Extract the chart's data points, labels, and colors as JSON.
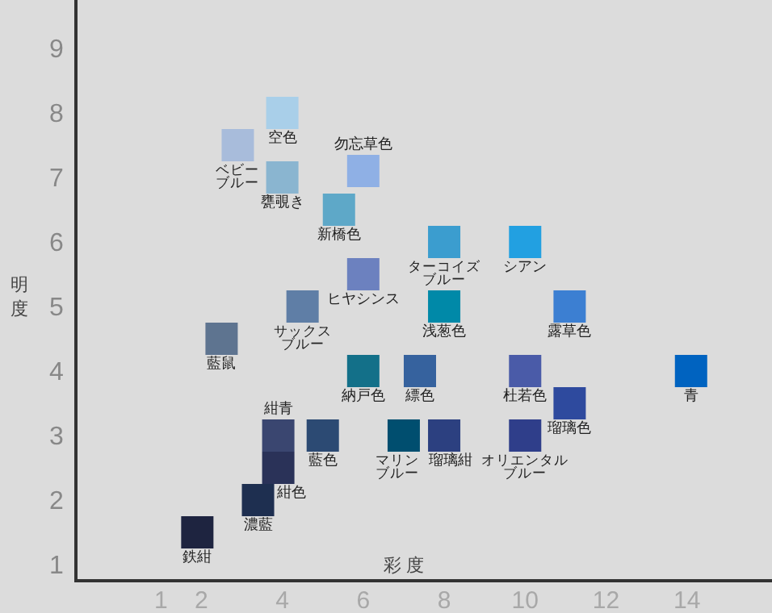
{
  "chart_data": {
    "type": "scatter",
    "xlabel": "彩 度",
    "ylabel": "明度",
    "xlim": [
      -1.1,
      16.1
    ],
    "ylim": [
      0.75,
      9.75
    ],
    "xticks": [
      1,
      2,
      4,
      6,
      8,
      10,
      12,
      14
    ],
    "yticks": [
      1,
      2,
      3,
      4,
      5,
      6,
      7,
      8,
      9
    ],
    "marker": "square",
    "series": [
      {
        "name": "空色",
        "color": "#a9cfe9",
        "x": [
          4
        ],
        "values": [
          8
        ]
      },
      {
        "name": "ベビーブルー",
        "color": "#a8bcdb",
        "x": [
          2.9
        ],
        "values": [
          7.5
        ]
      },
      {
        "name": "甕覗き",
        "color": "#8ab5d0",
        "x": [
          4
        ],
        "values": [
          7
        ]
      },
      {
        "name": "勿忘草色",
        "color": "#8fb0e5",
        "x": [
          6
        ],
        "values": [
          7.1
        ]
      },
      {
        "name": "新橋色",
        "color": "#5ea8c8",
        "x": [
          5.4
        ],
        "values": [
          6.5
        ]
      },
      {
        "name": "ヒヤシンス",
        "color": "#6c81bf",
        "x": [
          6
        ],
        "values": [
          5.5
        ]
      },
      {
        "name": "サックスブルー",
        "color": "#5f7ea6",
        "x": [
          4.5
        ],
        "values": [
          5
        ]
      },
      {
        "name": "藍鼠",
        "color": "#5e7490",
        "x": [
          2.5
        ],
        "values": [
          4.5
        ]
      },
      {
        "name": "納戸色",
        "color": "#137089",
        "x": [
          6
        ],
        "values": [
          4
        ]
      },
      {
        "name": "縹色",
        "color": "#36629e",
        "x": [
          7.4
        ],
        "values": [
          4
        ]
      },
      {
        "name": "ターコイズブルー",
        "color": "#3b9dcf",
        "x": [
          8
        ],
        "values": [
          6
        ]
      },
      {
        "name": "シアン",
        "color": "#22a0e1",
        "x": [
          10
        ],
        "values": [
          6
        ]
      },
      {
        "name": "浅葱色",
        "color": "#0089a8",
        "x": [
          8
        ],
        "values": [
          5
        ]
      },
      {
        "name": "露草色",
        "color": "#3c7fd2",
        "x": [
          11.1
        ],
        "values": [
          5
        ]
      },
      {
        "name": "杜若色",
        "color": "#4a5ba8",
        "x": [
          10
        ],
        "values": [
          4
        ]
      },
      {
        "name": "瑠璃色",
        "color": "#2e4a9e",
        "x": [
          11.1
        ],
        "values": [
          3.5
        ]
      },
      {
        "name": "青",
        "color": "#0063c0",
        "x": [
          14.1
        ],
        "values": [
          4
        ]
      },
      {
        "name": "紺青",
        "color": "#3a4670",
        "x": [
          3.9
        ],
        "values": [
          3
        ]
      },
      {
        "name": "藍色",
        "color": "#2c4a73",
        "x": [
          5
        ],
        "values": [
          3
        ]
      },
      {
        "name": "紺色",
        "color": "#2a3258",
        "x": [
          3.9
        ],
        "values": [
          2.5
        ]
      },
      {
        "name": "濃藍",
        "color": "#1e2f50",
        "x": [
          3.4
        ],
        "values": [
          2
        ]
      },
      {
        "name": "鉄紺",
        "color": "#1e2440",
        "x": [
          1.9
        ],
        "values": [
          1.5
        ]
      },
      {
        "name": "マリンブルー",
        "color": "#004e6f",
        "x": [
          7
        ],
        "values": [
          3
        ]
      },
      {
        "name": "瑠璃紺",
        "color": "#2c4080",
        "x": [
          8
        ],
        "values": [
          3
        ]
      },
      {
        "name": "オリエンタルブルー",
        "color": "#2f3e8a",
        "x": [
          10
        ],
        "values": [
          3
        ]
      }
    ]
  }
}
